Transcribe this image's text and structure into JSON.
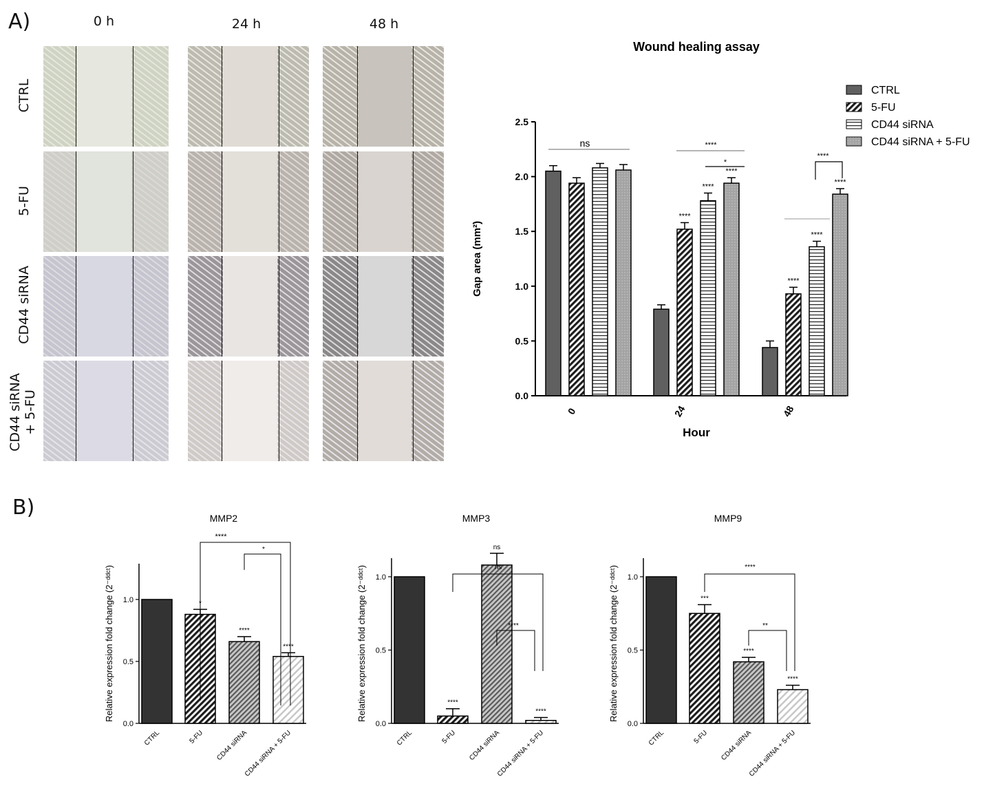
{
  "panel_a": {
    "label": "A)",
    "columns": [
      "0 h",
      "24 h",
      "48 h"
    ],
    "rows": [
      "CTRL",
      "5-FU",
      "CD44 siRNA",
      "CD44 siRNA\n+ 5-FU"
    ]
  },
  "panel_b": {
    "label": "B)"
  },
  "colors": {
    "ctrl": "#606060",
    "fu5": "#2a2a2a",
    "sirna": "#ffffff",
    "combo": "#a8a8a8",
    "b_ctrl": "#333333"
  },
  "chart_data": [
    {
      "type": "bar",
      "title": "Wound healing assay",
      "xlabel": "Hour",
      "ylabel": "Gap area (mm²)",
      "categories": [
        "0",
        "24",
        "48"
      ],
      "ylim": [
        0,
        2.5
      ],
      "yticks": [
        "0.0",
        "0.5",
        "1.0",
        "1.5",
        "2.0",
        "2.5"
      ],
      "legend_position": "top-right",
      "series": [
        {
          "name": "CTRL",
          "values": [
            2.05,
            0.79,
            0.44
          ],
          "errors": [
            0.05,
            0.04,
            0.06
          ],
          "sig": [
            "",
            "",
            ""
          ]
        },
        {
          "name": "5-FU",
          "values": [
            1.94,
            1.52,
            0.93
          ],
          "errors": [
            0.05,
            0.06,
            0.06
          ],
          "sig": [
            "",
            "****",
            "****"
          ]
        },
        {
          "name": "CD44 siRNA",
          "values": [
            2.08,
            1.78,
            1.36
          ],
          "errors": [
            0.04,
            0.07,
            0.05
          ],
          "sig": [
            "",
            "****",
            "****"
          ]
        },
        {
          "name": "CD44 siRNA + 5-FU",
          "values": [
            2.06,
            1.94,
            1.84
          ],
          "errors": [
            0.05,
            0.05,
            0.05
          ],
          "sig": [
            "",
            "****",
            "****"
          ]
        }
      ],
      "comparisons": [
        "ns",
        "****",
        "*",
        "****"
      ]
    },
    {
      "type": "bar",
      "title": "MMP2",
      "ylabel": "Relative expression fold change (2⁻ᵈᵈᶜᵗ)",
      "categories": [
        "CTRL",
        "5-FU",
        "CD44 siRNA",
        "CD44 siRNA + 5-FU"
      ],
      "values": [
        1.0,
        0.88,
        0.66,
        0.54
      ],
      "errors": [
        0,
        0.04,
        0.04,
        0.03
      ],
      "sig": [
        "",
        "*",
        "****",
        "****"
      ],
      "ylim": [
        0,
        1.0
      ],
      "yticks": [
        "0.0",
        "0.5",
        "1.0"
      ],
      "comparisons": [
        "****",
        "*"
      ]
    },
    {
      "type": "bar",
      "title": "MMP3",
      "ylabel": "Relative expression fold change (2⁻ᵈᵈᶜᵗ)",
      "categories": [
        "CTRL",
        "5-FU",
        "CD44 siRNA",
        "CD44 siRNA + 5-FU"
      ],
      "values": [
        1.0,
        0.05,
        1.08,
        0.02
      ],
      "errors": [
        0,
        0.05,
        0.08,
        0.02
      ],
      "sig": [
        "",
        "****",
        "ns",
        "****"
      ],
      "ylim": [
        0,
        1.0
      ],
      "yticks": [
        "0.0",
        "0.5",
        "1.0"
      ],
      "comparisons": [
        "ns",
        "****"
      ]
    },
    {
      "type": "bar",
      "title": "MMP9",
      "ylabel": "Relative expression fold change (2⁻ᵈᵈᶜᵗ)",
      "categories": [
        "CTRL",
        "5-FU",
        "CD44 siRNA",
        "CD44 siRNA + 5-FU"
      ],
      "values": [
        1.0,
        0.75,
        0.42,
        0.23
      ],
      "errors": [
        0,
        0.06,
        0.03,
        0.03
      ],
      "sig": [
        "",
        "***",
        "****",
        "****"
      ],
      "ylim": [
        0,
        1.0
      ],
      "yticks": [
        "0.0",
        "0.5",
        "1.0"
      ],
      "comparisons": [
        "****",
        "**"
      ]
    }
  ]
}
